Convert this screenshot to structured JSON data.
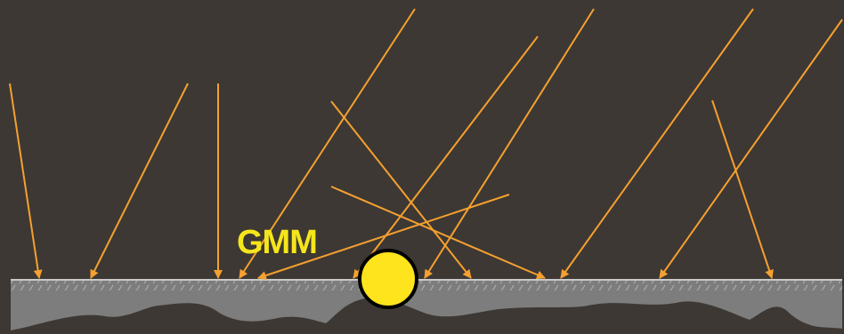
{
  "label": "GMM",
  "colors": {
    "background": "#3d3833",
    "rays": "#f5a030",
    "label": "#f5e61c",
    "marker_fill": "#fde41c",
    "marker_stroke": "#000000",
    "ground_fill": "#7d7d7d",
    "ground_line": "#c8c8c8",
    "bedrock": "#3d3833"
  },
  "icons": [
    "ray-arrow",
    "station-marker",
    "ground-surface"
  ]
}
